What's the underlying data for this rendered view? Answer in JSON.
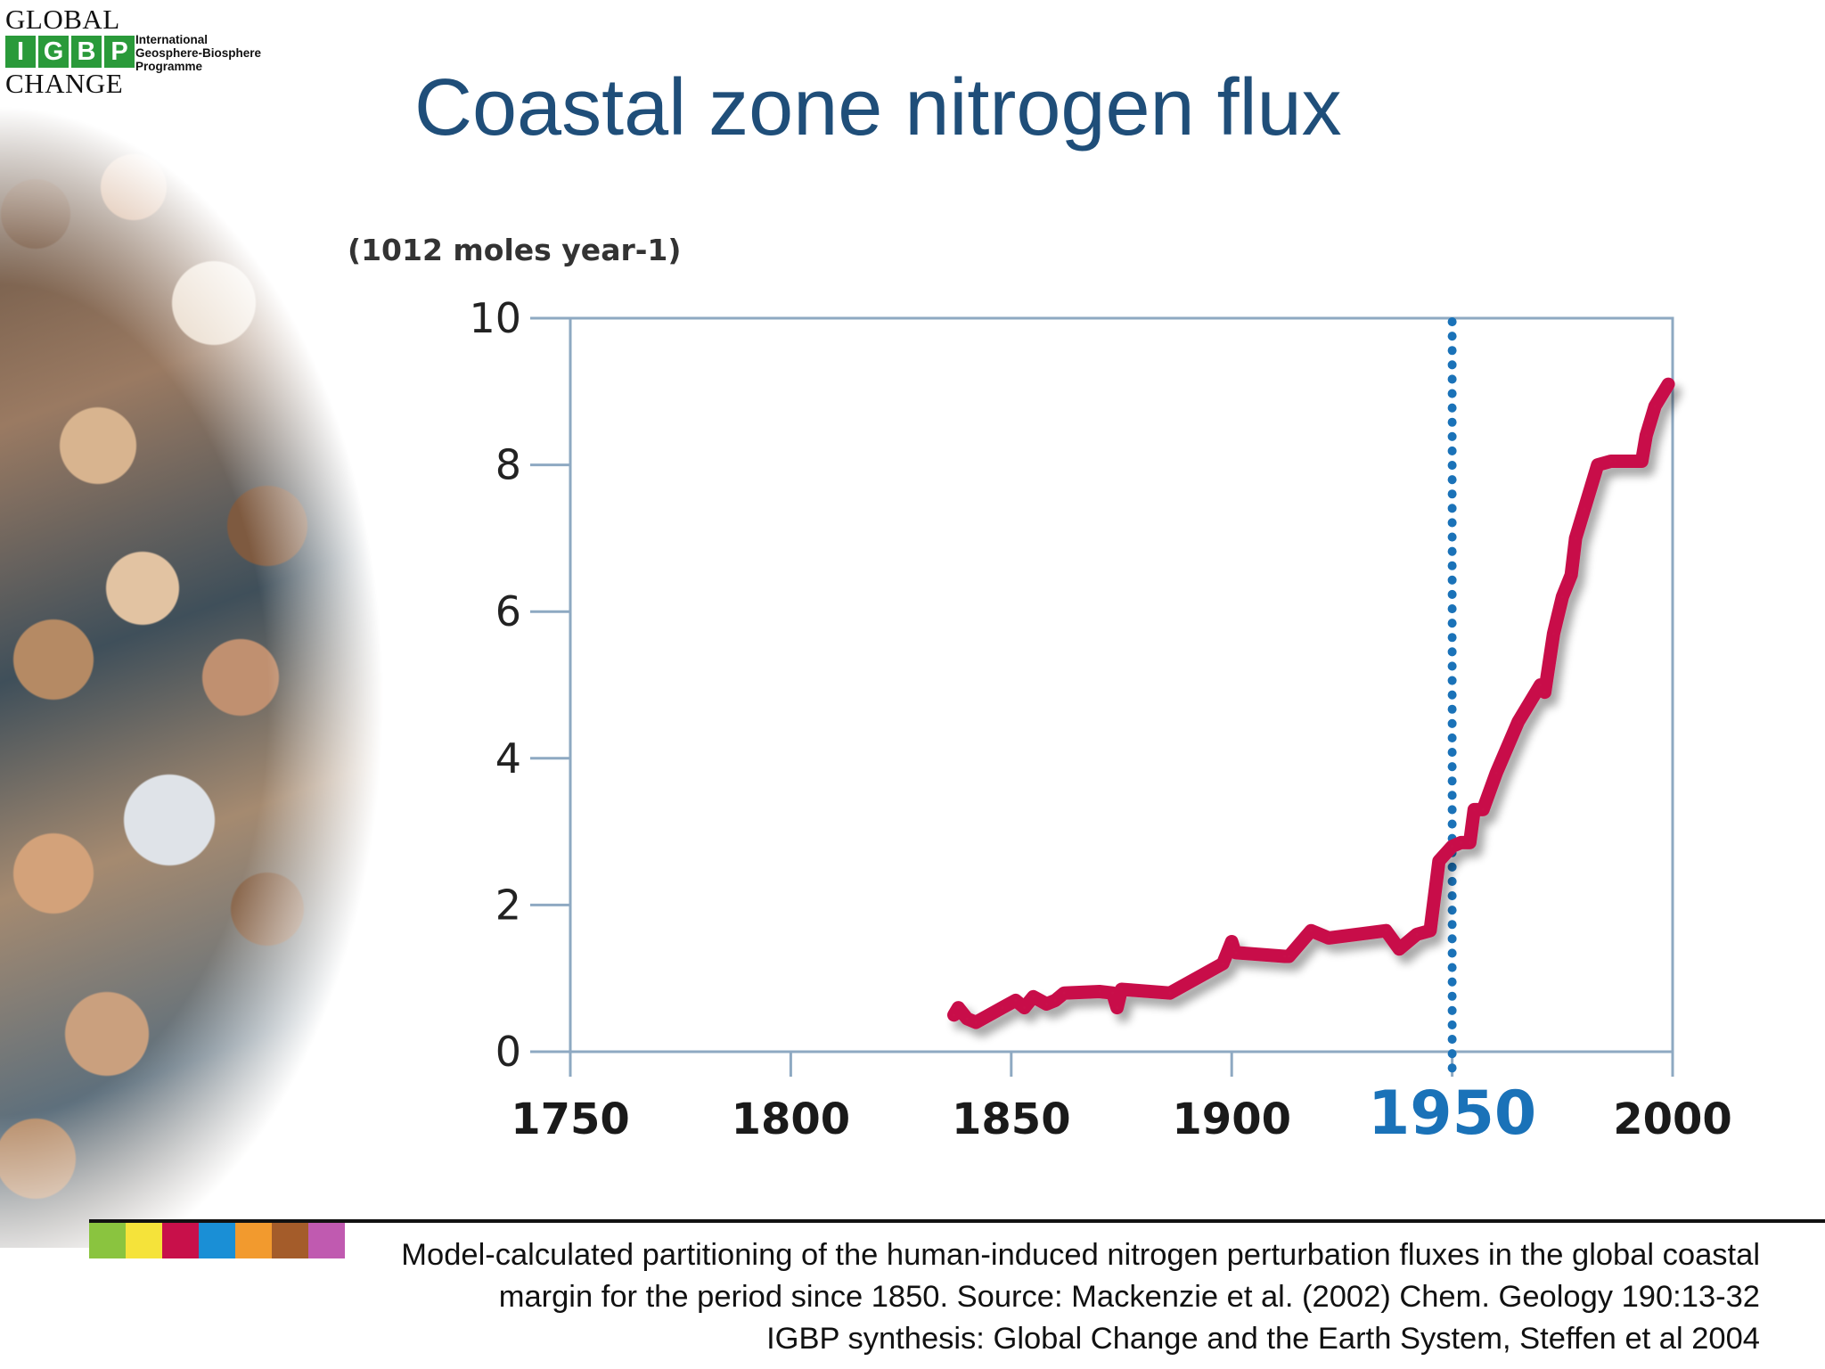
{
  "logo": {
    "word_top": "GLOBAL",
    "letters": [
      "I",
      "G",
      "B",
      "P"
    ],
    "word_bottom": "CHANGE",
    "subtitle_lines": [
      "International",
      "Geosphere-Biosphere",
      "Programme"
    ],
    "color": "#2a9a3a"
  },
  "slide": {
    "title": "Coastal zone nitrogen flux",
    "title_color": "#1f4e79"
  },
  "chart_data": {
    "type": "line",
    "title": "",
    "ylabel": "(1012 moles year-1)",
    "xlabel": "",
    "x_ticks": [
      1750,
      1800,
      1850,
      1900,
      1950,
      2000
    ],
    "x_tick_labels": [
      "1750",
      "1800",
      "1850",
      "1900",
      "1950",
      "2000"
    ],
    "y_ticks": [
      0,
      2,
      4,
      6,
      8,
      10
    ],
    "y_tick_labels": [
      "0",
      "2",
      "4",
      "6",
      "8",
      "10"
    ],
    "xlim": [
      1750,
      2000
    ],
    "ylim": [
      0,
      10
    ],
    "grid": false,
    "highlight_x": 1950,
    "highlight_label": "1950",
    "highlight_color": "#1a72b8",
    "series": [
      {
        "color": "#c8104a",
        "x": [
          1837,
          1838,
          1840,
          1842,
          1848,
          1851,
          1853,
          1855,
          1858,
          1860,
          1862,
          1870,
          1873,
          1874,
          1875,
          1886,
          1898,
          1900,
          1900.5,
          1901,
          1912,
          1913,
          1918,
          1922,
          1935,
          1938,
          1942,
          1945,
          1947,
          1950,
          1952,
          1954,
          1955,
          1957,
          1960,
          1965,
          1970,
          1971,
          1973,
          1975,
          1977,
          1978,
          1980,
          1983,
          1986,
          1987,
          1993,
          1994,
          1995,
          1996,
          1999
        ],
        "y": [
          0.5,
          0.6,
          0.45,
          0.4,
          0.6,
          0.7,
          0.6,
          0.75,
          0.65,
          0.7,
          0.8,
          0.82,
          0.8,
          0.6,
          0.85,
          0.8,
          1.2,
          1.5,
          1.4,
          1.35,
          1.3,
          1.3,
          1.65,
          1.55,
          1.65,
          1.4,
          1.6,
          1.65,
          2.6,
          2.8,
          2.85,
          2.85,
          3.3,
          3.3,
          3.8,
          4.5,
          5.0,
          4.9,
          5.7,
          6.2,
          6.5,
          7.0,
          7.4,
          8.0,
          8.05,
          8.05,
          8.05,
          8.4,
          8.6,
          8.8,
          9.1
        ]
      }
    ]
  },
  "color_strip": [
    "#8ac43f",
    "#f5e33a",
    "#c8104a",
    "#1a8fd6",
    "#f29a2e",
    "#a45c2a",
    "#c05ab0"
  ],
  "caption": {
    "line1": "Model-calculated partitioning of the human-induced nitrogen perturbation fluxes in the global coastal",
    "line2": "margin for the period since 1850. Source: Mackenzie et al. (2002) Chem. Geology 190:13-32 ",
    "line3": "IGBP synthesis: Global Change and the Earth System, Steffen et al 2004"
  }
}
